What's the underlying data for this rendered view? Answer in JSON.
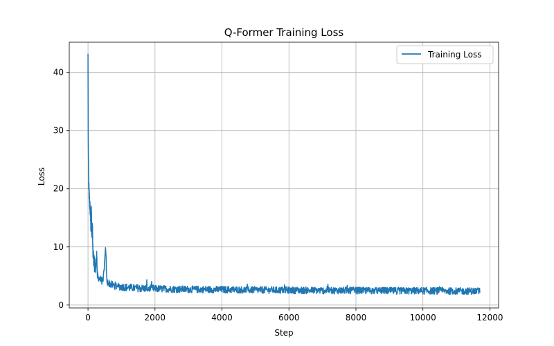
{
  "chart_data": {
    "type": "line",
    "title": "Q-Former Training Loss",
    "xlabel": "Step",
    "ylabel": "Loss",
    "xlim": [
      -560,
      12260
    ],
    "ylim": [
      -0.5,
      45.2
    ],
    "xticks": [
      0,
      2000,
      4000,
      6000,
      8000,
      10000,
      12000
    ],
    "yticks": [
      0,
      10,
      20,
      30,
      40
    ],
    "grid": true,
    "legend_position": "top-right",
    "series": [
      {
        "name": "Training Loss",
        "color": "#1f77b4",
        "x_range": [
          0,
          11700
        ],
        "points": [
          [
            0,
            43.2
          ],
          [
            5,
            30
          ],
          [
            10,
            26.5
          ],
          [
            20,
            21
          ],
          [
            30,
            19.5
          ],
          [
            50,
            17.5
          ],
          [
            70,
            16
          ],
          [
            90,
            13
          ],
          [
            100,
            17.2
          ],
          [
            110,
            12
          ],
          [
            130,
            14
          ],
          [
            150,
            9
          ],
          [
            180,
            7.5
          ],
          [
            220,
            6
          ],
          [
            260,
            8.8
          ],
          [
            280,
            5
          ],
          [
            350,
            4.5
          ],
          [
            450,
            4
          ],
          [
            530,
            9.8
          ],
          [
            560,
            4
          ],
          [
            700,
            3.5
          ],
          [
            900,
            3.2
          ],
          [
            1200,
            3.0
          ],
          [
            1500,
            2.9
          ],
          [
            2000,
            2.8
          ],
          [
            3000,
            2.7
          ],
          [
            4000,
            2.65
          ],
          [
            5000,
            2.6
          ],
          [
            6000,
            2.55
          ],
          [
            7000,
            2.5
          ],
          [
            8000,
            2.5
          ],
          [
            9000,
            2.45
          ],
          [
            10000,
            2.45
          ],
          [
            11000,
            2.4
          ],
          [
            11700,
            2.4
          ]
        ],
        "noise_amplitude": 0.6
      }
    ]
  }
}
